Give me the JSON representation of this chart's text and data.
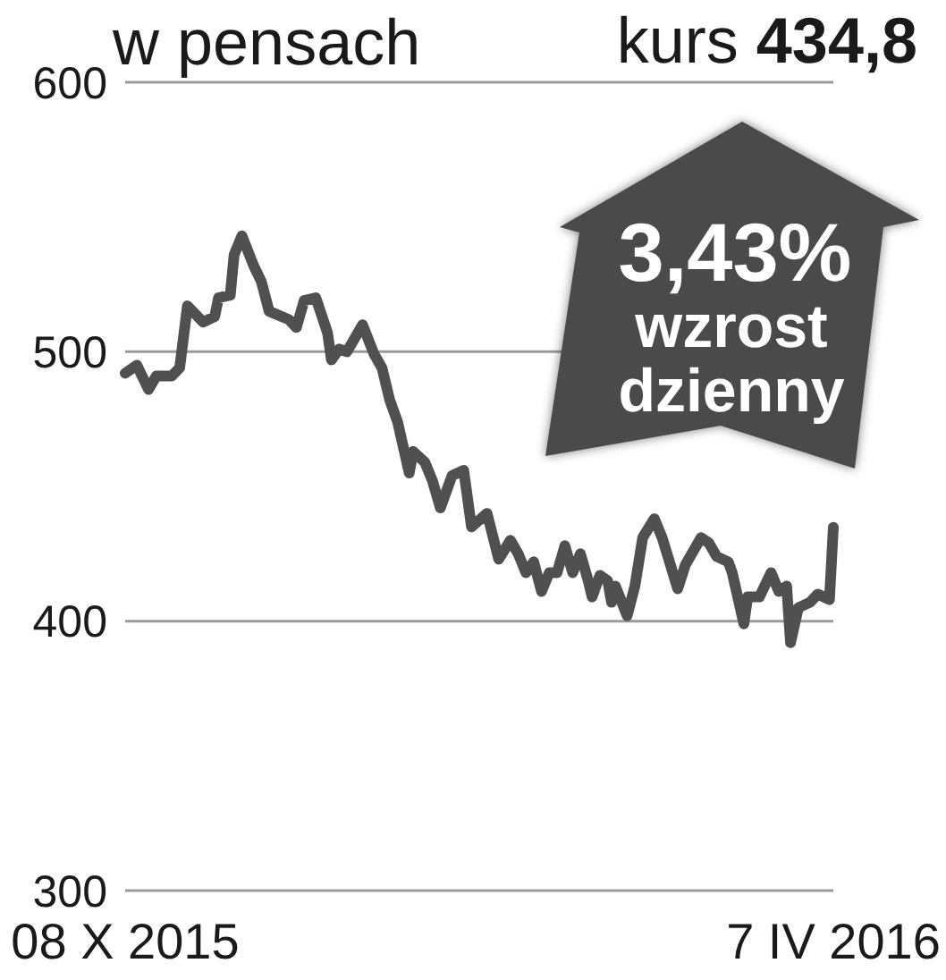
{
  "chart_data": {
    "type": "line",
    "ylabel": "w pensach",
    "annotations": [
      "kurs 434,8",
      "3,43% wzrost dzienny"
    ],
    "x": [
      "2015-10-08",
      "2015-10-11",
      "2015-10-14",
      "2015-10-16",
      "2015-10-20",
      "2015-10-22",
      "2015-10-24",
      "2015-10-28",
      "2015-10-31",
      "2015-11-01",
      "2015-11-04",
      "2015-11-05",
      "2015-11-07",
      "2015-11-10",
      "2015-11-12",
      "2015-11-14",
      "2015-11-19",
      "2015-11-21",
      "2015-11-23",
      "2015-11-26",
      "2015-11-29",
      "2015-11-30",
      "2015-12-02",
      "2015-12-04",
      "2015-12-08",
      "2015-12-11",
      "2015-12-13",
      "2015-12-15",
      "2015-12-17",
      "2015-12-20",
      "2015-12-21",
      "2015-12-24",
      "2015-12-26",
      "2015-12-28",
      "2015-12-31",
      "2016-01-03",
      "2016-01-05",
      "2016-01-09",
      "2016-01-12",
      "2016-01-15",
      "2016-01-17",
      "2016-01-19",
      "2016-01-21",
      "2016-01-23",
      "2016-01-25",
      "2016-01-27",
      "2016-01-29",
      "2016-01-31",
      "2016-02-02",
      "2016-02-04",
      "2016-02-05",
      "2016-02-07",
      "2016-02-09",
      "2016-02-10",
      "2016-02-11",
      "2016-02-14",
      "2016-02-16",
      "2016-02-18",
      "2016-02-21",
      "2016-02-23",
      "2016-02-27",
      "2016-02-29",
      "2016-03-04",
      "2016-03-06",
      "2016-03-08",
      "2016-03-11",
      "2016-03-12",
      "2016-03-15",
      "2016-03-16",
      "2016-03-19",
      "2016-03-22",
      "2016-03-24",
      "2016-03-26",
      "2016-03-27",
      "2016-03-29",
      "2016-04-01",
      "2016-04-03",
      "2016-04-06",
      "2016-04-07"
    ],
    "values": [
      492,
      495,
      486,
      491,
      491,
      494,
      517,
      511,
      513,
      520,
      521,
      536,
      543,
      532,
      526,
      515,
      512,
      509,
      519,
      520,
      507,
      497,
      501,
      500,
      510,
      499,
      494,
      482,
      474,
      455,
      463,
      459,
      452,
      442,
      454,
      456,
      435,
      440,
      423,
      430,
      425,
      418,
      422,
      411,
      418,
      418,
      428,
      418,
      425,
      415,
      409,
      417,
      415,
      407,
      413,
      402,
      413,
      431,
      438,
      431,
      412,
      421,
      431,
      429,
      424,
      422,
      418,
      399,
      409,
      409,
      418,
      411,
      413,
      392,
      405,
      407,
      410,
      408,
      434.8
    ],
    "color": "#505050",
    "xlim": [
      "2015-10-08",
      "2016-04-07"
    ],
    "xticks": [
      {
        "value": "2015-10-08",
        "label": "08 X 2015"
      },
      {
        "value": "2016-04-07",
        "label": "7 IV 2016"
      }
    ],
    "ylim": [
      300,
      600
    ],
    "yticks": [
      300,
      400,
      500,
      600
    ],
    "grid": "y"
  }
}
